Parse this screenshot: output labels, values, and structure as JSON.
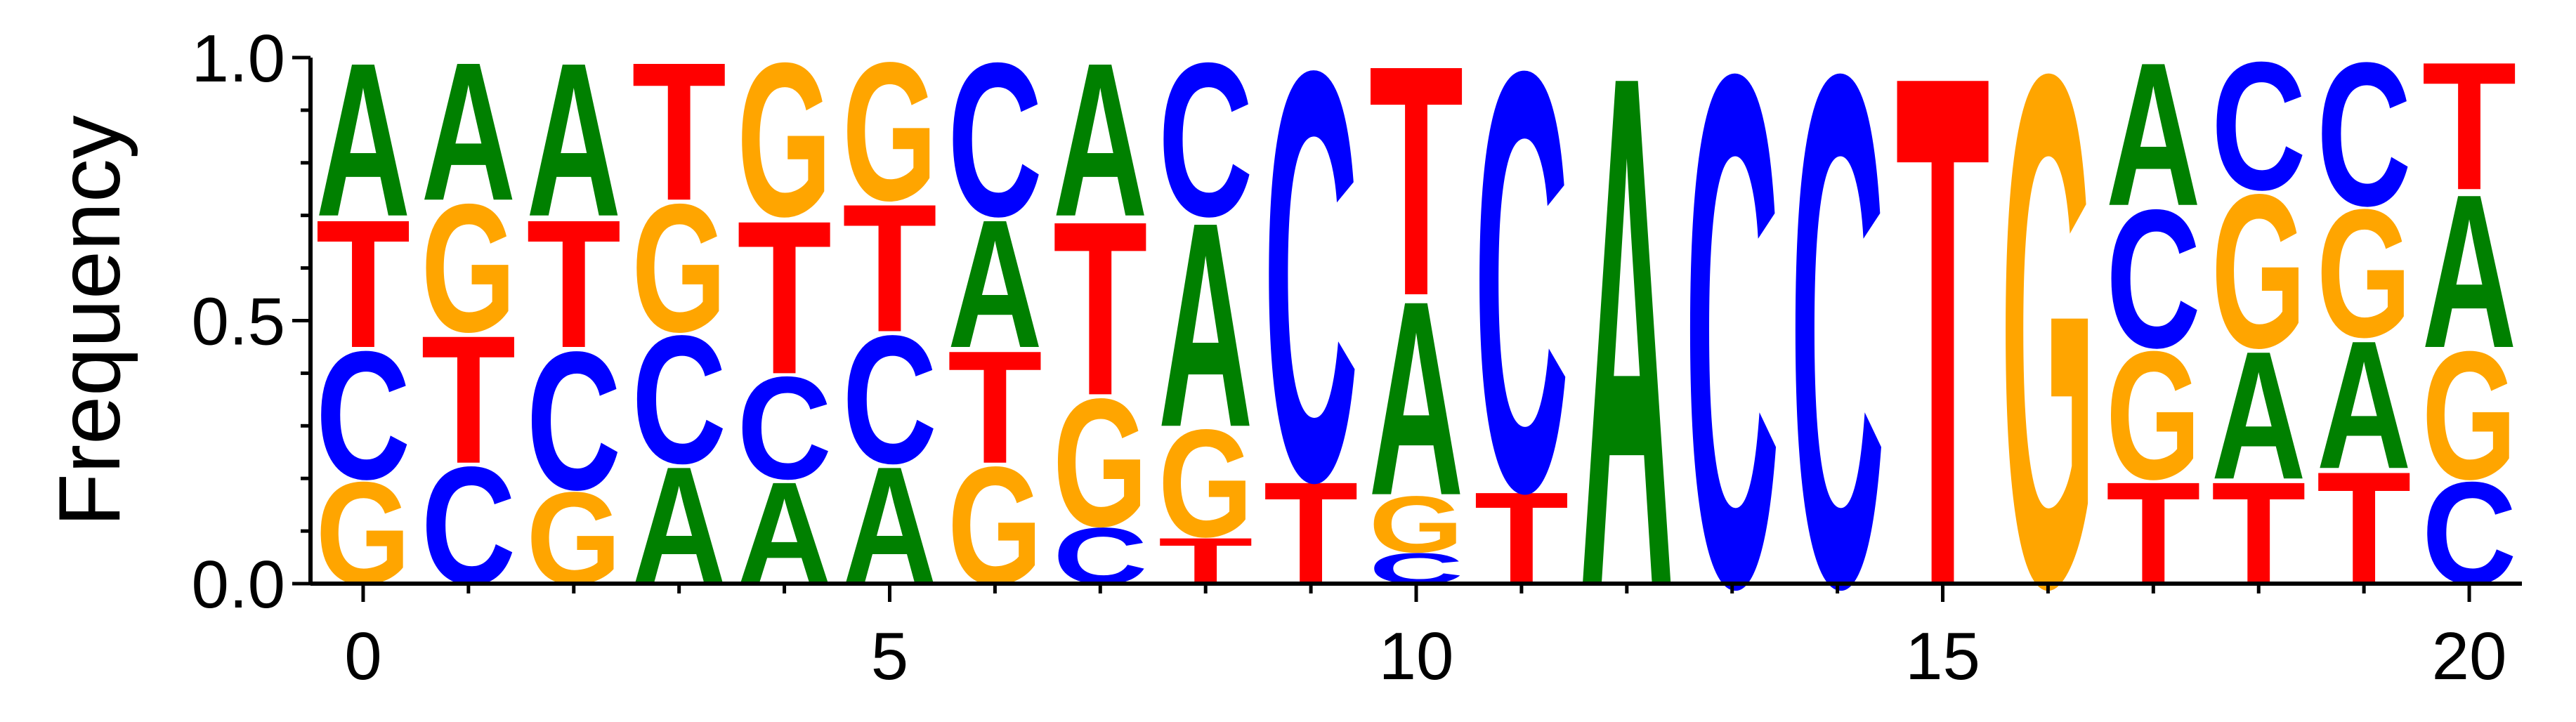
{
  "chart_data": {
    "type": "sequence-logo",
    "ylabel": "Frequency",
    "xlabel": "",
    "xlim": [
      -0.5,
      20.5
    ],
    "ylim": [
      0,
      1
    ],
    "x_ticks": [
      0,
      5,
      10,
      15,
      20
    ],
    "y_ticks": [
      0.0,
      0.5,
      1.0
    ],
    "y_tick_labels": [
      "0.0",
      "0.5",
      "1.0"
    ],
    "letter_colors": {
      "A": "#008000",
      "C": "#0000ff",
      "G": "#ffa500",
      "T": "#ff0000"
    },
    "positions": [
      {
        "pos": 0,
        "stack": [
          [
            "G",
            0.2
          ],
          [
            "C",
            0.25
          ],
          [
            "T",
            0.25
          ],
          [
            "A",
            0.3
          ]
        ]
      },
      {
        "pos": 1,
        "stack": [
          [
            "C",
            0.23
          ],
          [
            "T",
            0.25
          ],
          [
            "G",
            0.25
          ],
          [
            "A",
            0.27
          ]
        ]
      },
      {
        "pos": 2,
        "stack": [
          [
            "G",
            0.18
          ],
          [
            "C",
            0.27
          ],
          [
            "T",
            0.25
          ],
          [
            "A",
            0.3
          ]
        ]
      },
      {
        "pos": 3,
        "stack": [
          [
            "A",
            0.23
          ],
          [
            "C",
            0.25
          ],
          [
            "G",
            0.25
          ],
          [
            "T",
            0.27
          ]
        ]
      },
      {
        "pos": 4,
        "stack": [
          [
            "A",
            0.2
          ],
          [
            "C",
            0.2
          ],
          [
            "T",
            0.3
          ],
          [
            "G",
            0.3
          ]
        ]
      },
      {
        "pos": 5,
        "stack": [
          [
            "A",
            0.23
          ],
          [
            "C",
            0.25
          ],
          [
            "T",
            0.25
          ],
          [
            "G",
            0.27
          ]
        ]
      },
      {
        "pos": 6,
        "stack": [
          [
            "G",
            0.23
          ],
          [
            "T",
            0.22
          ],
          [
            "A",
            0.25
          ],
          [
            "C",
            0.3
          ]
        ]
      },
      {
        "pos": 7,
        "stack": [
          [
            "C",
            0.11
          ],
          [
            "G",
            0.25
          ],
          [
            "T",
            0.34
          ],
          [
            "A",
            0.3
          ]
        ]
      },
      {
        "pos": 8,
        "stack": [
          [
            "T",
            0.09
          ],
          [
            "G",
            0.21
          ],
          [
            "A",
            0.4
          ],
          [
            "C",
            0.3
          ]
        ]
      },
      {
        "pos": 9,
        "stack": [
          [
            "T",
            0.2
          ],
          [
            "C",
            0.8
          ]
        ]
      },
      {
        "pos": 10,
        "stack": [
          [
            "C",
            0.06
          ],
          [
            "G",
            0.11
          ],
          [
            "A",
            0.38
          ],
          [
            "T",
            0.45
          ]
        ]
      },
      {
        "pos": 11,
        "stack": [
          [
            "T",
            0.18
          ],
          [
            "C",
            0.82
          ]
        ]
      },
      {
        "pos": 12,
        "stack": [
          [
            "A",
            1.0
          ]
        ]
      },
      {
        "pos": 13,
        "stack": [
          [
            "C",
            1.0
          ]
        ]
      },
      {
        "pos": 14,
        "stack": [
          [
            "C",
            1.0
          ]
        ]
      },
      {
        "pos": 15,
        "stack": [
          [
            "T",
            1.0
          ]
        ]
      },
      {
        "pos": 16,
        "stack": [
          [
            "G",
            1.0
          ]
        ]
      },
      {
        "pos": 17,
        "stack": [
          [
            "T",
            0.2
          ],
          [
            "G",
            0.25
          ],
          [
            "C",
            0.27
          ],
          [
            "A",
            0.28
          ]
        ]
      },
      {
        "pos": 18,
        "stack": [
          [
            "T",
            0.2
          ],
          [
            "A",
            0.25
          ],
          [
            "G",
            0.3
          ],
          [
            "C",
            0.25
          ]
        ]
      },
      {
        "pos": 19,
        "stack": [
          [
            "T",
            0.22
          ],
          [
            "A",
            0.25
          ],
          [
            "G",
            0.25
          ],
          [
            "C",
            0.28
          ]
        ]
      },
      {
        "pos": 20,
        "stack": [
          [
            "C",
            0.2
          ],
          [
            "G",
            0.25
          ],
          [
            "A",
            0.3
          ],
          [
            "T",
            0.25
          ]
        ]
      }
    ]
  }
}
